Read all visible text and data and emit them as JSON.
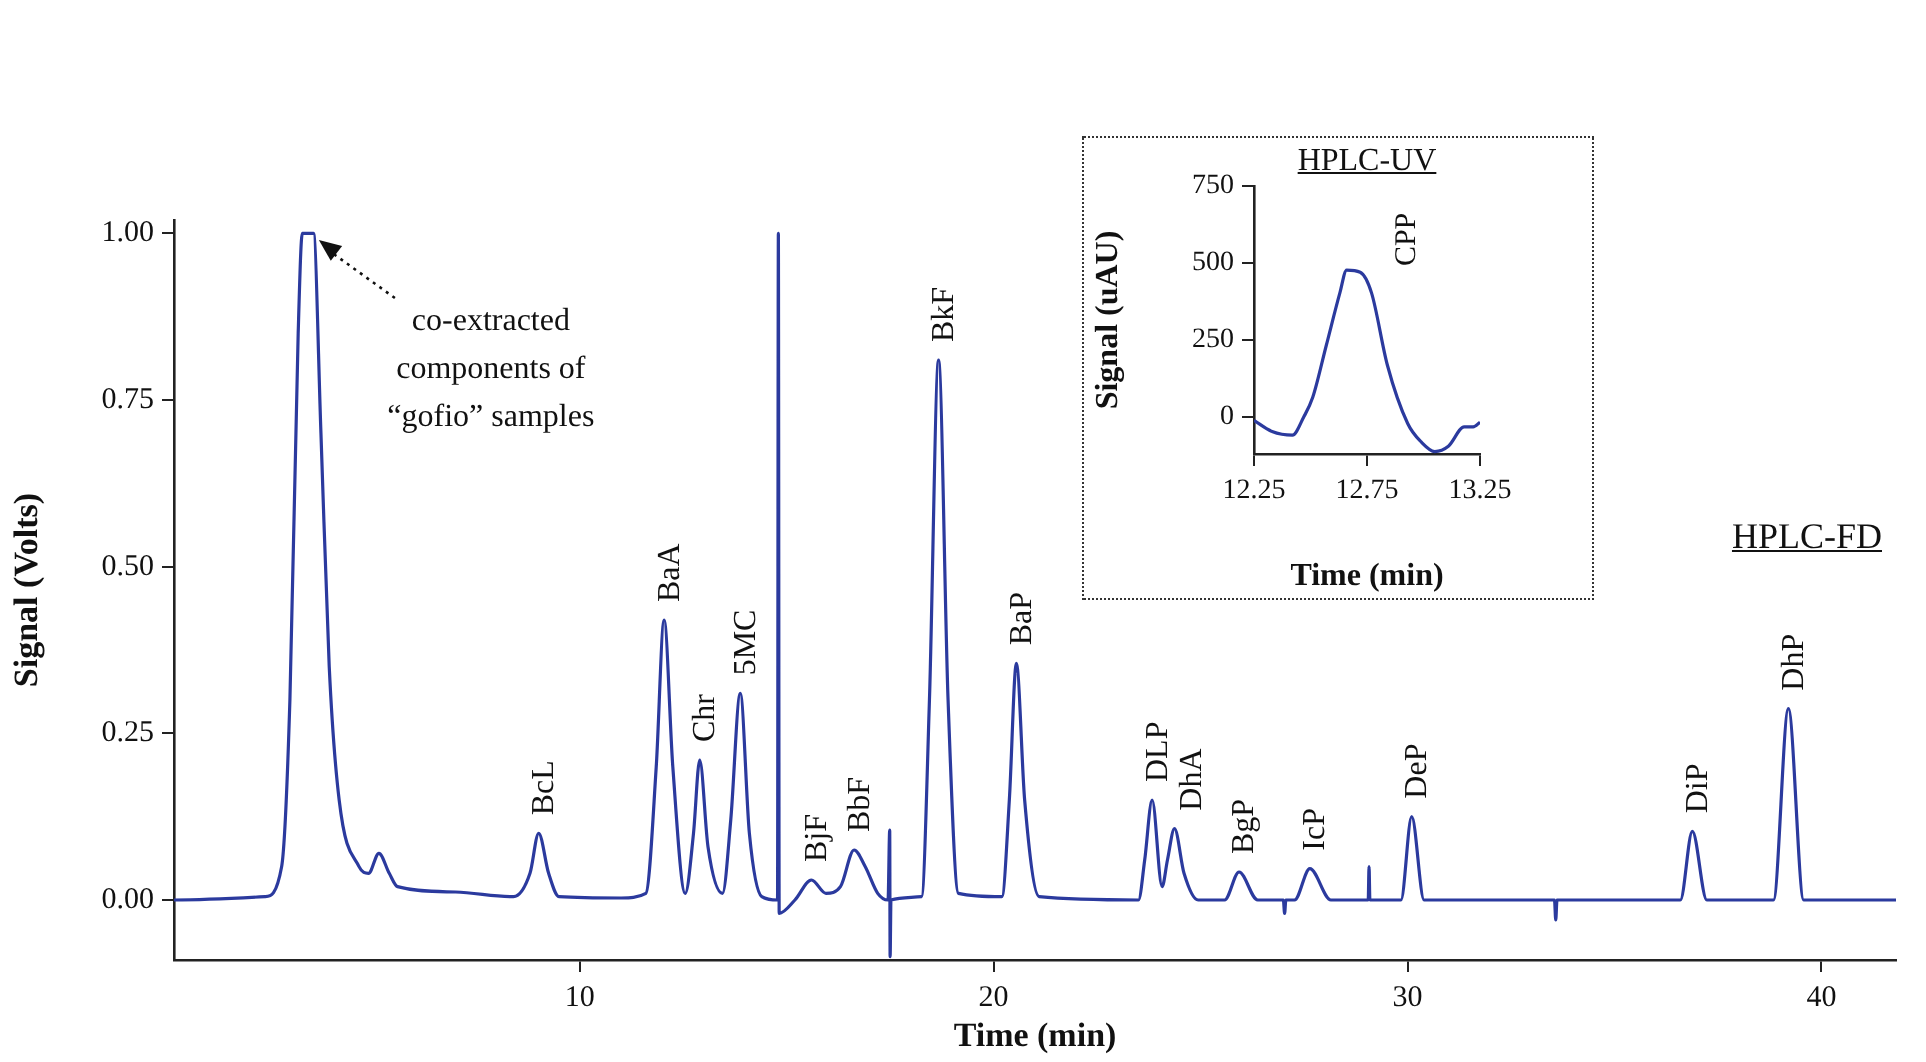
{
  "chart_data": [
    {
      "type": "line",
      "xlabel": "Time (min)",
      "ylabel": "Signal (Volts)",
      "xlim": [
        0.2,
        41.8
      ],
      "ylim": [
        -0.09,
        1.02
      ],
      "xticks": [
        10,
        20,
        30,
        40
      ],
      "yticks": [
        {
          "value": 0,
          "label": "0.00"
        },
        {
          "value": 0.25,
          "label": "0.25"
        },
        {
          "value": 0.5,
          "label": "0.50"
        },
        {
          "value": 0.75,
          "label": "0.75"
        },
        {
          "value": 1,
          "label": "1.00"
        }
      ],
      "annotations": [
        {
          "text": "co-extracted components of “gofio” samples",
          "x": 3.7,
          "y": 0.99
        },
        {
          "text": "BcL",
          "x": 9.01,
          "y": 0.1
        },
        {
          "text": "BaA",
          "x": 12.04,
          "y": 0.42
        },
        {
          "text": "Chr",
          "x": 12.9,
          "y": 0.21
        },
        {
          "text": "5MC",
          "x": 13.88,
          "y": 0.31
        },
        {
          "text": "BjF",
          "x": 15.6,
          "y": 0.03
        },
        {
          "text": "BbF",
          "x": 16.63,
          "y": 0.075
        },
        {
          "text": "BkF",
          "x": 18.67,
          "y": 0.81
        },
        {
          "text": "BaP",
          "x": 20.55,
          "y": 0.355
        },
        {
          "text": "DLP",
          "x": 23.83,
          "y": 0.15
        },
        {
          "text": "DhA",
          "x": 24.37,
          "y": 0.107
        },
        {
          "text": "BgP",
          "x": 25.93,
          "y": 0.042
        },
        {
          "text": "IcP",
          "x": 27.64,
          "y": 0.047
        },
        {
          "text": "DeP",
          "x": 30.1,
          "y": 0.125
        },
        {
          "text": "DiP",
          "x": 36.88,
          "y": 0.103
        },
        {
          "text": "DhP",
          "x": 39.2,
          "y": 0.287
        },
        "HPLC-FD"
      ],
      "x": [
        0.2,
        2.4,
        2.8,
        3.0,
        3.2,
        3.3,
        3.57,
        3.75,
        3.95,
        4.19,
        4.67,
        4.9,
        5.15,
        5.4,
        5.6,
        7.0,
        8.4,
        8.8,
        9.01,
        9.25,
        9.5,
        11.0,
        11.6,
        11.85,
        12.04,
        12.25,
        12.55,
        12.75,
        12.9,
        13.1,
        13.45,
        13.65,
        13.88,
        14.1,
        14.4,
        14.78,
        14.8,
        14.82,
        15.2,
        15.6,
        15.95,
        16.3,
        16.63,
        16.9,
        17.2,
        17.45,
        17.49,
        17.5,
        17.52,
        18.26,
        18.45,
        18.67,
        18.9,
        19.15,
        20.2,
        20.38,
        20.55,
        20.75,
        21.1,
        23.5,
        23.65,
        23.83,
        24.07,
        24.2,
        24.37,
        24.6,
        24.94,
        25.58,
        25.93,
        26.38,
        27.0,
        27.03,
        27.06,
        27.27,
        27.64,
        28.15,
        29.05,
        29.07,
        29.09,
        29.84,
        30.1,
        30.4,
        33.55,
        33.58,
        33.61,
        36.59,
        36.88,
        37.23,
        38.84,
        39.2,
        39.57,
        41.8
      ],
      "series": [
        {
          "color": "#2b3a9e",
          "values": [
            0,
            0.005,
            0.05,
            0.3,
            0.85,
            1.0,
            1.0,
            0.7,
            0.35,
            0.15,
            0.05,
            0.04,
            0.07,
            0.04,
            0.02,
            0.012,
            0.005,
            0.04,
            0.1,
            0.04,
            0.005,
            0.003,
            0.01,
            0.2,
            0.42,
            0.2,
            0.01,
            0.1,
            0.21,
            0.08,
            0.01,
            0.12,
            0.31,
            0.1,
            0.005,
            0,
            1.0,
            -0.02,
            0,
            0.03,
            0.01,
            0.02,
            0.075,
            0.05,
            0.01,
            0,
            0.105,
            -0.085,
            0,
            0.005,
            0.3,
            0.81,
            0.3,
            0.01,
            0.005,
            0.15,
            0.355,
            0.15,
            0.005,
            0,
            0.06,
            0.15,
            0.02,
            0.06,
            0.107,
            0.04,
            0,
            0,
            0.042,
            0,
            0,
            -0.02,
            0,
            0,
            0.047,
            0,
            0,
            0.05,
            0,
            0,
            0.125,
            0,
            0,
            -0.03,
            0,
            0,
            0.103,
            0,
            0,
            0.287,
            0,
            0
          ]
        }
      ]
    },
    {
      "type": "line",
      "title": "HPLC-UV",
      "xlabel": "Time (min)",
      "ylabel": "Signal (uAU)",
      "xlim": [
        12.25,
        13.25
      ],
      "ylim": [
        -120,
        750
      ],
      "xticks": [
        12.25,
        12.75,
        13.25
      ],
      "yticks": [
        0,
        250,
        500,
        750
      ],
      "annotations": [
        {
          "text": "CPP",
          "x": 12.66,
          "y": 477
        }
      ],
      "x": [
        12.25,
        12.33,
        12.42,
        12.47,
        12.51,
        12.57,
        12.63,
        12.66,
        12.72,
        12.77,
        12.84,
        12.93,
        12.99,
        13.05,
        13.11,
        13.18,
        13.22,
        13.25
      ],
      "series": [
        {
          "color": "#2b3a9e",
          "values": [
            -11,
            -47,
            -59,
            0,
            64,
            233,
            403,
            477,
            470,
            403,
            169,
            -21,
            -81,
            -112,
            -95,
            -32,
            -32,
            -17
          ]
        }
      ]
    }
  ]
}
